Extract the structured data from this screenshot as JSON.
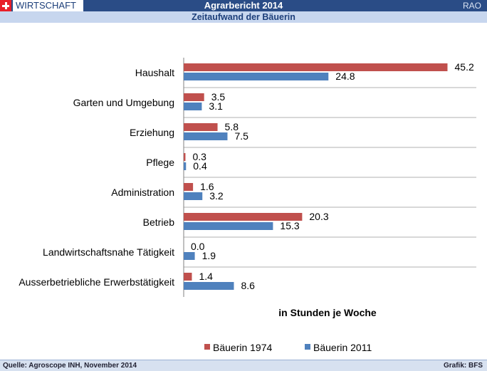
{
  "header": {
    "section": "WIRTSCHAFT",
    "title": "Agrarbericht 2014",
    "code": "RAO",
    "subtitle": "Zeitaufwand der Bäuerin"
  },
  "footer": {
    "source": "Quelle: Agroscope INH, November 2014",
    "credit": "Grafik: BFS"
  },
  "chart_data": {
    "type": "bar",
    "orientation": "horizontal",
    "categories": [
      "Haushalt",
      "Garten und Umgebung",
      "Erziehung",
      "Pflege",
      "Administration",
      "Betrieb",
      "Landwirtschaftsnahe Tätigkeit",
      "Ausserbetriebliche Erwerbstätigkeit"
    ],
    "series": [
      {
        "name": "Bäuerin 1974",
        "color": "#c0504d",
        "values": [
          45.2,
          3.5,
          5.8,
          0.3,
          1.6,
          20.3,
          0.0,
          1.4
        ]
      },
      {
        "name": "Bäuerin 2011",
        "color": "#4f81bd",
        "values": [
          24.8,
          3.1,
          7.5,
          0.4,
          3.2,
          15.3,
          1.9,
          8.6
        ]
      }
    ],
    "value_labels": {
      "Bäuerin 1974": [
        "45.2",
        "3.5",
        "5.8",
        "0.3",
        "1.6",
        "20.3",
        "0.0",
        "1.4"
      ],
      "Bäuerin 2011": [
        "24.8",
        "3.1",
        "7.5",
        "0.4",
        "3.2",
        "15.3",
        "1.9",
        "8.6"
      ]
    },
    "xlabel": "in Stunden je Woche",
    "xlim": [
      0,
      50
    ],
    "legend_position": "bottom",
    "grid": "horizontal separators"
  }
}
